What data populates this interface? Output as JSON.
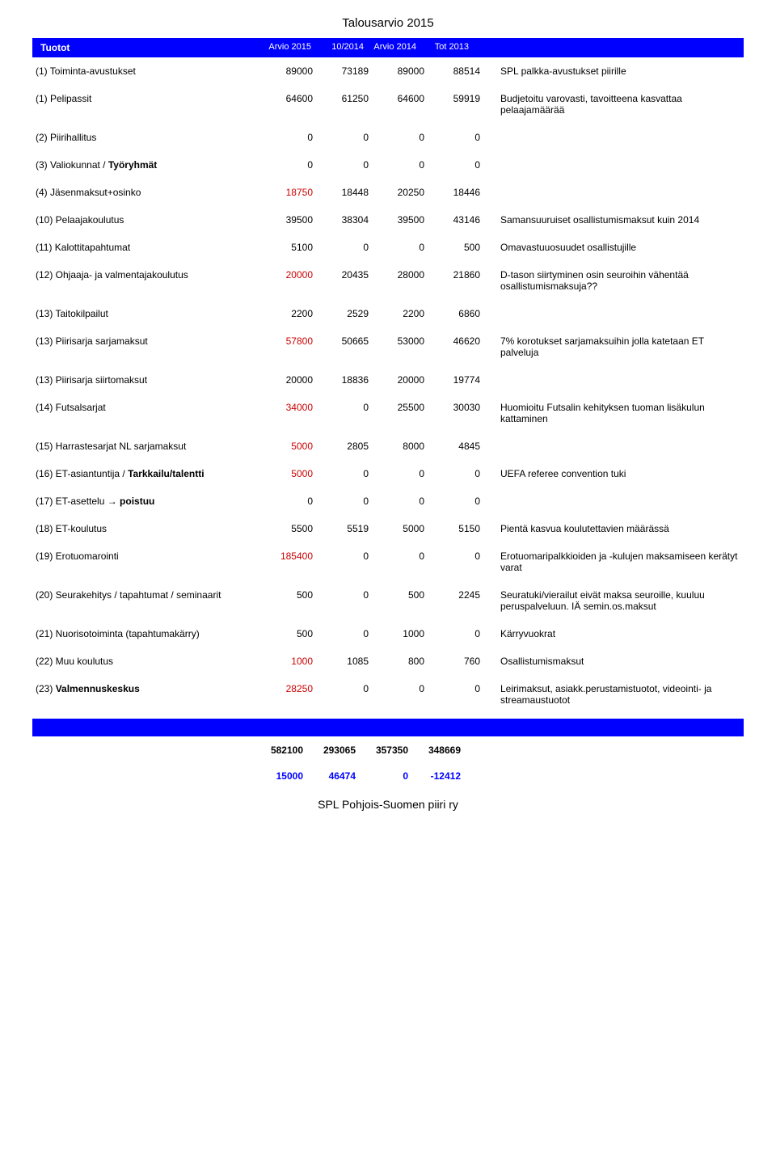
{
  "doc_title": "Talousarvio 2015",
  "colors": {
    "band_bg": "#0000ff",
    "band_text": "#ffffff",
    "red": "#cc0000",
    "blue": "#0000ff",
    "text": "#000000"
  },
  "header": {
    "label": "Tuotot",
    "cols": [
      "Arvio 2015",
      "10/2014",
      "Arvio 2014",
      "Tot 2013"
    ]
  },
  "rows": [
    {
      "label": "(1) Toiminta-avustukset",
      "v": [
        "89000",
        "73189",
        "89000",
        "88514"
      ],
      "note": "SPL palkka-avustukset piirille"
    },
    {
      "label": "(1) Pelipassit",
      "v": [
        "64600",
        "61250",
        "64600",
        "59919"
      ],
      "note": "Budjetoitu varovasti, tavoitteena kasvattaa pelaajamäärää"
    },
    {
      "label": "(2) Piirihallitus",
      "v": [
        "0",
        "0",
        "0",
        "0"
      ],
      "note": ""
    },
    {
      "label": "(3) Valiokunnat / Työryhmät",
      "v": [
        "0",
        "0",
        "0",
        "0"
      ],
      "note": "",
      "bold_extra": "Työryhmät"
    },
    {
      "label": "(4) Jäsenmaksut+osinko",
      "v": [
        "18750",
        "18448",
        "20250",
        "18446"
      ],
      "red0": true,
      "note": ""
    },
    {
      "label": "(10) Pelaajakoulutus",
      "v": [
        "39500",
        "38304",
        "39500",
        "43146"
      ],
      "note": "Samansuuruiset osallistumismaksut kuin 2014"
    },
    {
      "label": "(11) Kalottitapahtumat",
      "v": [
        "5100",
        "0",
        "0",
        "500"
      ],
      "note": "Omavastuuosuudet osallistujille"
    },
    {
      "label": "(12) Ohjaaja- ja valmentajakoulutus",
      "v": [
        "20000",
        "20435",
        "28000",
        "21860"
      ],
      "red0": true,
      "note": "D-tason siirtyminen osin seuroihin vähentää osallistumismaksuja??"
    },
    {
      "label": "(13) Taitokilpailut",
      "v": [
        "2200",
        "2529",
        "2200",
        "6860"
      ],
      "note": ""
    },
    {
      "label": "(13) Piirisarja sarjamaksut",
      "v": [
        "57800",
        "50665",
        "53000",
        "46620"
      ],
      "red0": true,
      "note": "7% korotukset sarjamaksuihin jolla katetaan ET palveluja"
    },
    {
      "label": "(13) Piirisarja siirtomaksut",
      "v": [
        "20000",
        "18836",
        "20000",
        "19774"
      ],
      "note": ""
    },
    {
      "label": "(14) Futsalsarjat",
      "v": [
        "34000",
        "0",
        "25500",
        "30030"
      ],
      "red0": true,
      "note": "Huomioitu Futsalin kehityksen tuoman lisäkulun kattaminen"
    },
    {
      "label": "(15) Harrastesarjat NL sarjamaksut",
      "v": [
        "5000",
        "2805",
        "8000",
        "4845"
      ],
      "red0": true,
      "note": ""
    },
    {
      "label": "(16) ET-asiantuntija / Tarkkailu/talentti",
      "v": [
        "5000",
        "0",
        "0",
        "0"
      ],
      "red0": true,
      "note": "UEFA referee convention tuki",
      "bold_extra": "Tarkkailu/talentti"
    },
    {
      "label": "(17) ET-asettelu → poistuu",
      "v": [
        "0",
        "0",
        "0",
        "0"
      ],
      "note": "",
      "bold_extra": "poistuu"
    },
    {
      "label": "(18) ET-koulutus",
      "v": [
        "5500",
        "5519",
        "5000",
        "5150"
      ],
      "note": "Pientä kasvua koulutettavien määrässä"
    },
    {
      "label": "(19) Erotuomarointi",
      "v": [
        "185400",
        "0",
        "0",
        "0"
      ],
      "red0": true,
      "note": "Erotuomaripalkkioiden ja -kulujen maksamiseen kerätyt varat"
    },
    {
      "label": "(20) Seurakehitys / tapahtumat / seminaarit",
      "v": [
        "500",
        "0",
        "500",
        "2245"
      ],
      "note": "Seuratuki/vierailut eivät maksa seuroille, kuuluu peruspalveluun. IÄ semin.os.maksut"
    },
    {
      "label": "(21) Nuorisotoiminta (tapahtumakärry)",
      "v": [
        "500",
        "0",
        "1000",
        "0"
      ],
      "note": "Kärryvuokrat"
    },
    {
      "label": "(22) Muu koulutus",
      "v": [
        "1000",
        "1085",
        "800",
        "760"
      ],
      "red0": true,
      "note": "Osallistumismaksut"
    },
    {
      "label": "(23) Valmennuskeskus",
      "v": [
        "28250",
        "0",
        "0",
        "0"
      ],
      "red0": true,
      "note": "Leirimaksut, asiakk.perustamistuotot, videointi- ja streamaustuotot",
      "bold_lbl": "Valmennuskeskus"
    }
  ],
  "totals": {
    "row1": [
      "582100",
      "293065",
      "357350",
      "348669"
    ],
    "row2": [
      "15000",
      "46474",
      "0",
      "-12412"
    ]
  },
  "footer_org": "SPL Pohjois-Suomen piiri ry"
}
